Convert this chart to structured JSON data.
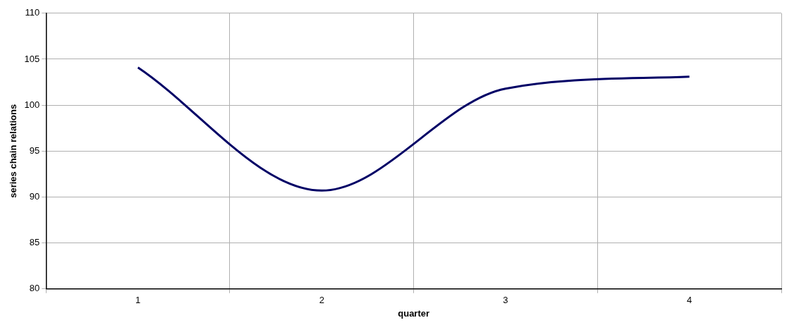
{
  "chart_data": {
    "type": "line",
    "xlabel": "quarter",
    "ylabel": "series chain relations",
    "categories": [
      "1",
      "2",
      "3",
      "4"
    ],
    "series": [
      {
        "color": "#000066",
        "values": [
          104.1,
          90.7,
          101.8,
          103.1
        ]
      }
    ],
    "ylim": [
      80,
      110
    ],
    "yticks": [
      80,
      85,
      90,
      95,
      100,
      105,
      110
    ],
    "grid": true,
    "legend": false,
    "marker": "none",
    "line_style": "solid"
  }
}
